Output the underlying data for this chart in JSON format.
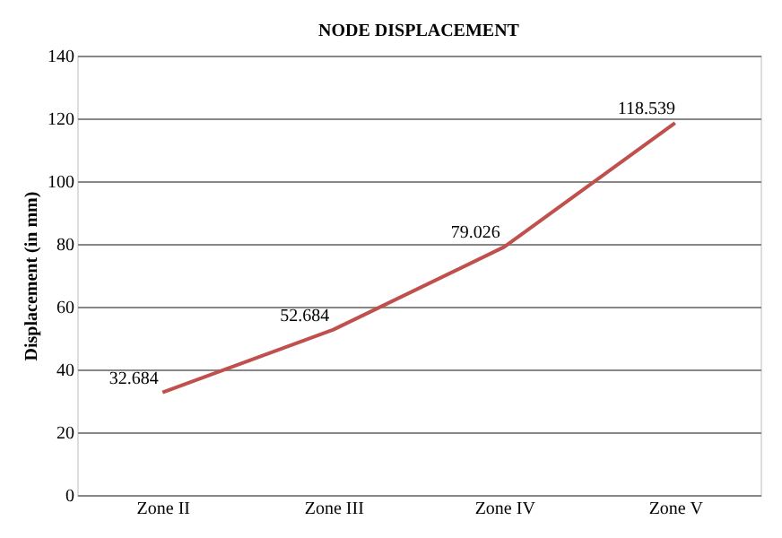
{
  "chart_data": {
    "type": "line",
    "title": "NODE DISPLACEMENT",
    "ylabel": "Displacement (in mm)",
    "categories": [
      "Zone II",
      "Zone III",
      "Zone IV",
      "Zone V"
    ],
    "series": [
      {
        "color": "#c0504d",
        "values": [
          32.684,
          52.684,
          79.026,
          118.539
        ]
      }
    ],
    "ylim": [
      0,
      140
    ],
    "yticks": [
      0,
      20,
      40,
      60,
      80,
      100,
      120,
      140
    ],
    "grid": "y",
    "data_labels": true,
    "marker": "none",
    "line_style": "solid",
    "legend": false
  }
}
